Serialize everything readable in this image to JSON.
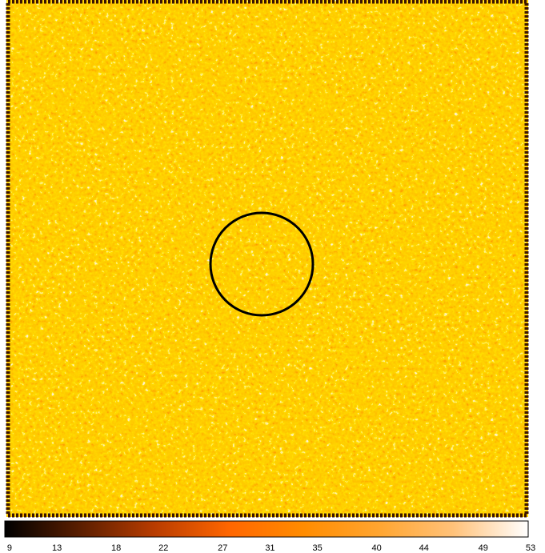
{
  "chart_data": {
    "type": "image",
    "colormap": [
      "#000000",
      "#5a1e00",
      "#b83c00",
      "#ff6600",
      "#ff8c00",
      "#ffa530",
      "#ffc27a",
      "#ffffff"
    ],
    "xlim": [
      8.6,
      52.8
    ],
    "xticks": [
      9,
      13,
      18,
      22,
      27,
      31,
      35,
      40,
      44,
      49,
      53
    ]
  }
}
